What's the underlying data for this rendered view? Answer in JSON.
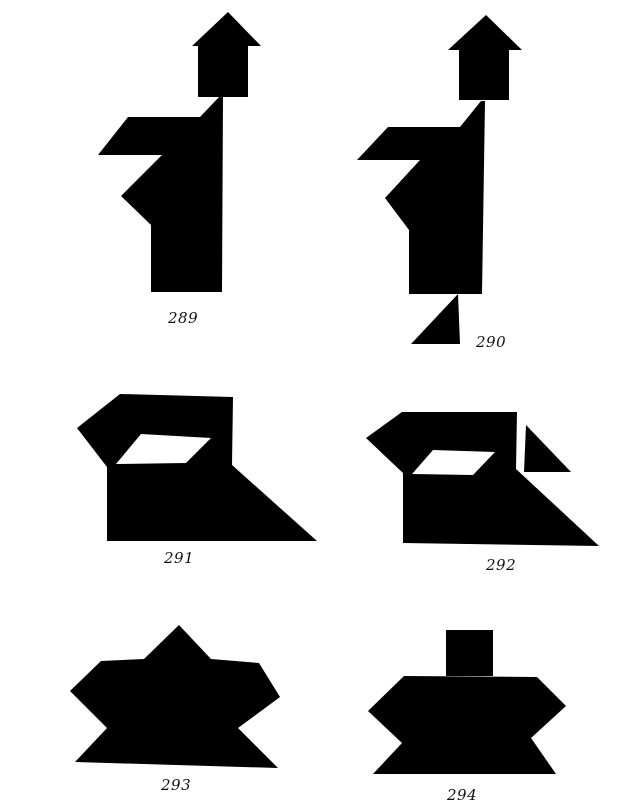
{
  "figures": [
    {
      "id": "289",
      "label": "289"
    },
    {
      "id": "290",
      "label": "290"
    },
    {
      "id": "291",
      "label": "291"
    },
    {
      "id": "292",
      "label": "292"
    },
    {
      "id": "293",
      "label": "293"
    },
    {
      "id": "294",
      "label": "294"
    }
  ],
  "colors": {
    "ink": "#000000",
    "paper": "#ffffff"
  }
}
